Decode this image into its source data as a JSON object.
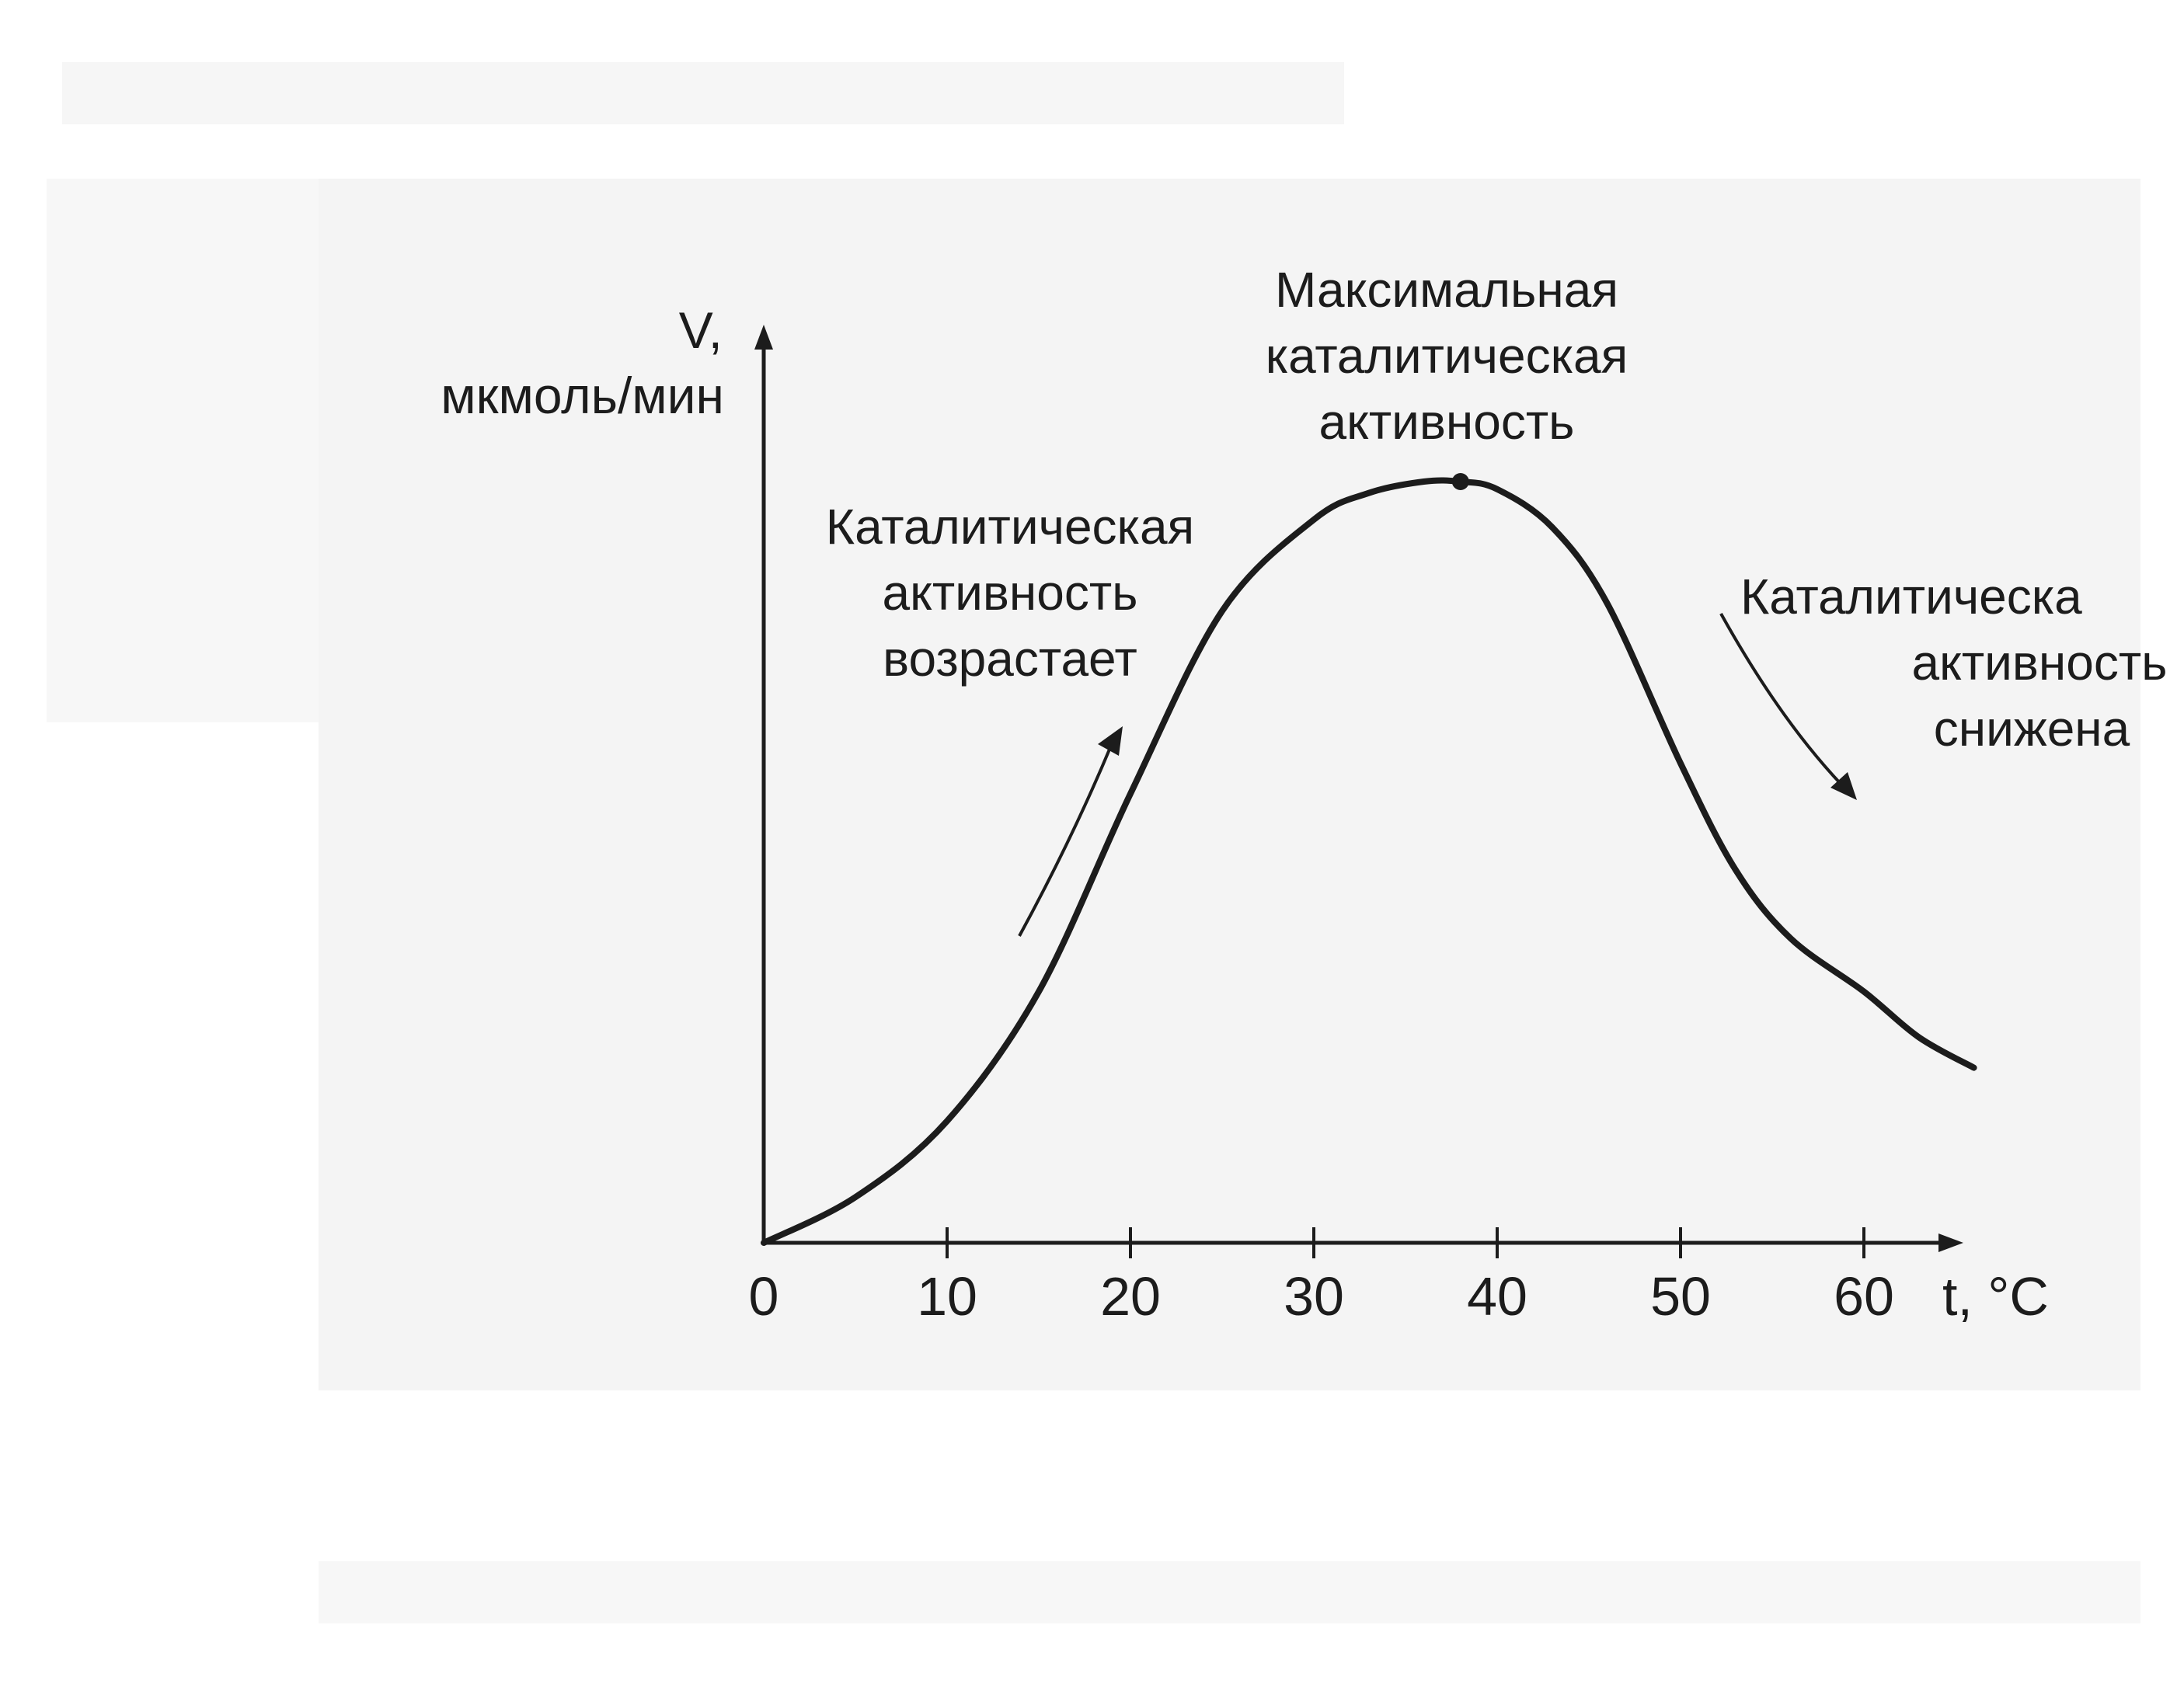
{
  "chart_data": {
    "type": "line",
    "xlabel": "t, °C",
    "ylabel_line1": "V,",
    "ylabel_line2": "мкмоль/мин",
    "xlim": [
      0,
      66
    ],
    "ylim": [
      0,
      1.1
    ],
    "x_ticks": [
      0,
      10,
      20,
      30,
      40,
      50,
      60
    ],
    "x_tick_labels": [
      "0",
      "10",
      "20",
      "30",
      "40",
      "50",
      "60"
    ],
    "series": [
      {
        "x": [
          0,
          5,
          10,
          15,
          20,
          25,
          30,
          33,
          36,
          38,
          40,
          43,
          46,
          50,
          53,
          56,
          60,
          63,
          66
        ],
        "values": [
          0,
          0.06,
          0.16,
          0.33,
          0.59,
          0.83,
          0.95,
          0.985,
          1.0,
          1.0,
          0.99,
          0.94,
          0.84,
          0.63,
          0.49,
          0.4,
          0.33,
          0.27,
          0.23
        ]
      }
    ],
    "max_point": {
      "x": 38,
      "y": 1.0
    },
    "annotations": {
      "peak": [
        "Максимальная",
        "каталитическая",
        "активность"
      ],
      "rising": [
        "Каталитическая",
        "активность",
        "возрастает"
      ],
      "falling": [
        "Каталитическа",
        "активность",
        "снижена"
      ]
    },
    "grid": false,
    "legend": "none",
    "colors": {
      "line": "#1c1c1c",
      "background": "#ffffff",
      "scan_shade": "#f4f4f4"
    }
  }
}
